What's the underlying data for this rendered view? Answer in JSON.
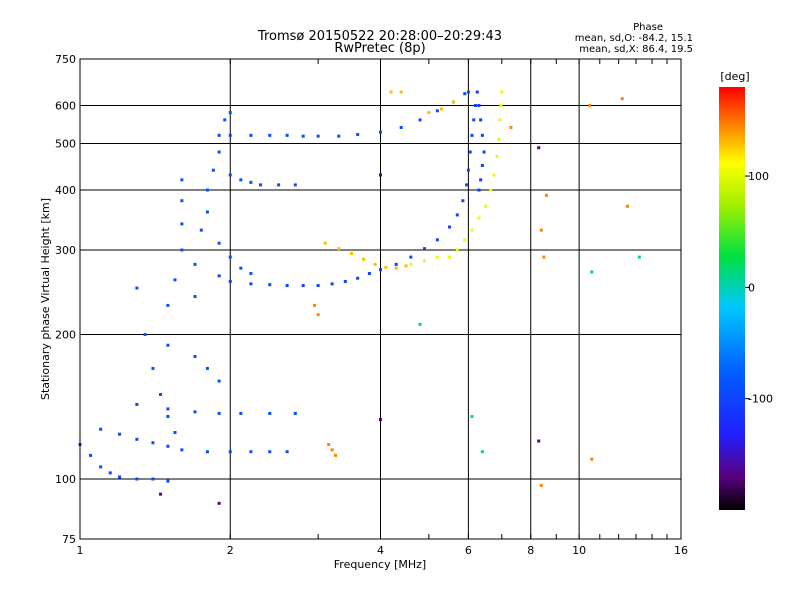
{
  "chart_data": {
    "type": "scatter",
    "title": "Tromsø 20150522 20:28:00–20:29:43",
    "subtitle": "RwPretec (8p)",
    "xlabel": "Frequency [MHz]",
    "ylabel": "Stationary phase Virtual Height [km]",
    "x_scale": "log",
    "y_scale": "log",
    "xlim": [
      1,
      16
    ],
    "ylim": [
      75,
      750
    ],
    "x_ticks": [
      1,
      2,
      4,
      6,
      8,
      10,
      16
    ],
    "x_tick_labels": [
      "1",
      "2",
      "4",
      "6",
      "8",
      "10",
      "16"
    ],
    "y_ticks": [
      75,
      100,
      200,
      300,
      400,
      500,
      600,
      750
    ],
    "y_tick_labels": [
      "75",
      "100",
      "200",
      "300",
      "400",
      "500",
      "600",
      "750"
    ],
    "grid": true,
    "colorbar": {
      "label": "[deg]",
      "min": -200,
      "max": 180,
      "ticks": [
        100,
        0,
        -100
      ],
      "tick_labels": [
        "100",
        "0",
        "-100"
      ]
    },
    "stats": {
      "header": "Phase",
      "o_line": "mean, sd,O: -84.2, 15.1",
      "x_line": "mean, sd,X: 86.4, 19.5"
    },
    "series": [
      {
        "phase": -95,
        "points": [
          [
            1.0,
            118
          ],
          [
            1.05,
            112
          ],
          [
            1.1,
            106
          ],
          [
            1.15,
            103
          ],
          [
            1.2,
            101
          ],
          [
            1.3,
            100
          ],
          [
            1.4,
            100
          ],
          [
            1.5,
            99
          ],
          [
            1.1,
            127
          ],
          [
            1.2,
            124
          ],
          [
            1.3,
            121
          ],
          [
            1.4,
            119
          ],
          [
            1.5,
            117
          ],
          [
            1.6,
            115
          ],
          [
            1.8,
            114
          ],
          [
            2.0,
            114
          ],
          [
            2.2,
            114
          ],
          [
            2.4,
            114
          ],
          [
            2.6,
            114
          ],
          [
            1.3,
            143
          ],
          [
            1.5,
            140
          ],
          [
            1.7,
            138
          ],
          [
            1.9,
            137
          ],
          [
            2.1,
            137
          ],
          [
            2.4,
            137
          ],
          [
            2.7,
            137
          ]
        ]
      },
      {
        "phase": -90,
        "points": [
          [
            1.3,
            250
          ],
          [
            1.35,
            200
          ],
          [
            1.4,
            170
          ],
          [
            1.45,
            150
          ],
          [
            1.5,
            135
          ],
          [
            1.55,
            125
          ],
          [
            1.5,
            190
          ],
          [
            1.5,
            230
          ],
          [
            1.55,
            260
          ],
          [
            1.6,
            300
          ],
          [
            1.6,
            340
          ],
          [
            1.6,
            380
          ],
          [
            1.6,
            420
          ],
          [
            1.7,
            240
          ],
          [
            1.7,
            280
          ],
          [
            1.75,
            330
          ],
          [
            1.8,
            360
          ],
          [
            1.8,
            400
          ],
          [
            1.85,
            440
          ],
          [
            1.9,
            480
          ],
          [
            1.9,
            520
          ],
          [
            1.95,
            560
          ],
          [
            2.0,
            580
          ],
          [
            1.7,
            180
          ],
          [
            1.8,
            170
          ],
          [
            1.9,
            160
          ]
        ]
      },
      {
        "phase": -95,
        "points": [
          [
            2.0,
            430
          ],
          [
            2.1,
            420
          ],
          [
            2.2,
            415
          ],
          [
            2.3,
            410
          ],
          [
            2.5,
            410
          ],
          [
            2.7,
            410
          ],
          [
            1.9,
            310
          ],
          [
            2.0,
            290
          ],
          [
            2.1,
            275
          ],
          [
            2.2,
            268
          ]
        ]
      },
      {
        "phase": -100,
        "points": [
          [
            1.9,
            265
          ],
          [
            2.0,
            258
          ],
          [
            2.2,
            255
          ],
          [
            2.4,
            254
          ],
          [
            2.6,
            253
          ],
          [
            2.8,
            253
          ],
          [
            3.0,
            253
          ],
          [
            3.2,
            255
          ],
          [
            3.4,
            258
          ],
          [
            3.6,
            262
          ],
          [
            3.8,
            268
          ],
          [
            4.0,
            273
          ],
          [
            4.3,
            280
          ],
          [
            4.6,
            290
          ],
          [
            4.9,
            302
          ],
          [
            5.2,
            315
          ],
          [
            5.5,
            335
          ],
          [
            5.7,
            355
          ],
          [
            5.85,
            380
          ],
          [
            5.95,
            410
          ],
          [
            6.0,
            440
          ],
          [
            6.05,
            480
          ],
          [
            6.1,
            520
          ],
          [
            6.15,
            560
          ],
          [
            6.2,
            600
          ]
        ]
      },
      {
        "phase": -95,
        "points": [
          [
            2.0,
            520
          ],
          [
            2.2,
            520
          ],
          [
            2.4,
            520
          ],
          [
            2.6,
            520
          ],
          [
            2.8,
            518
          ],
          [
            3.0,
            518
          ],
          [
            3.3,
            518
          ],
          [
            3.6,
            522
          ],
          [
            4.0,
            528
          ],
          [
            4.4,
            540
          ],
          [
            4.8,
            560
          ],
          [
            5.2,
            585
          ],
          [
            5.6,
            610
          ],
          [
            5.9,
            635
          ],
          [
            6.0,
            640
          ]
        ]
      },
      {
        "phase": -105,
        "points": [
          [
            6.25,
            640
          ],
          [
            6.3,
            600
          ],
          [
            6.35,
            560
          ],
          [
            6.4,
            520
          ],
          [
            6.45,
            480
          ],
          [
            6.4,
            450
          ],
          [
            6.35,
            420
          ],
          [
            6.3,
            400
          ]
        ]
      },
      {
        "phase": 105,
        "points": [
          [
            5.5,
            290
          ],
          [
            5.7,
            300
          ],
          [
            5.9,
            315
          ],
          [
            6.1,
            330
          ],
          [
            6.3,
            350
          ],
          [
            6.5,
            370
          ],
          [
            6.65,
            400
          ],
          [
            6.75,
            430
          ],
          [
            6.85,
            470
          ],
          [
            6.9,
            510
          ],
          [
            6.95,
            560
          ],
          [
            6.97,
            600
          ],
          [
            7.0,
            640
          ],
          [
            4.6,
            280
          ],
          [
            4.9,
            285
          ],
          [
            5.2,
            290
          ]
        ]
      },
      {
        "phase": 130,
        "points": [
          [
            3.1,
            310
          ],
          [
            3.3,
            302
          ],
          [
            3.5,
            295
          ],
          [
            3.7,
            287
          ],
          [
            3.9,
            280
          ],
          [
            4.1,
            276
          ],
          [
            4.3,
            275
          ],
          [
            4.5,
            278
          ],
          [
            5.0,
            580
          ],
          [
            5.3,
            590
          ],
          [
            5.6,
            610
          ],
          [
            4.2,
            640
          ],
          [
            4.4,
            640
          ]
        ]
      },
      {
        "phase": 145,
        "points": [
          [
            3.2,
            115
          ],
          [
            3.25,
            112
          ],
          [
            3.15,
            118
          ],
          [
            2.95,
            230
          ],
          [
            3.0,
            220
          ],
          [
            8.5,
            290
          ],
          [
            8.4,
            330
          ],
          [
            8.6,
            390
          ],
          [
            10.5,
            600
          ],
          [
            10.6,
            110
          ],
          [
            12.2,
            620
          ],
          [
            12.5,
            370
          ],
          [
            7.3,
            540
          ],
          [
            8.4,
            97
          ]
        ]
      },
      {
        "phase": 15,
        "points": [
          [
            13.2,
            290
          ],
          [
            6.1,
            135
          ],
          [
            4.8,
            210
          ],
          [
            6.4,
            114
          ],
          [
            10.6,
            270
          ]
        ]
      },
      {
        "phase": -170,
        "points": [
          [
            1.45,
            93
          ],
          [
            1.9,
            89
          ],
          [
            4.0,
            133
          ],
          [
            8.3,
            120
          ],
          [
            4.0,
            430
          ],
          [
            8.3,
            490
          ]
        ]
      }
    ]
  }
}
